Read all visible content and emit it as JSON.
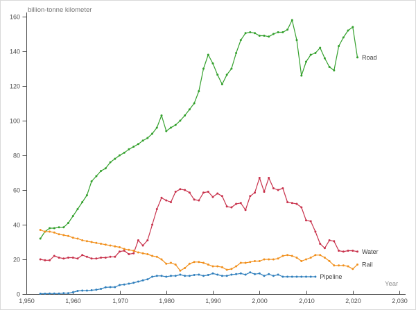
{
  "chart_data": {
    "type": "line",
    "title": "",
    "ylabel": "billion-tonne kilometer",
    "xlabel": "Year",
    "xlim": [
      1950,
      2030
    ],
    "ylim": [
      0,
      160
    ],
    "x_ticks": [
      1950,
      1960,
      1970,
      1980,
      1990,
      2000,
      2010,
      2020,
      2030
    ],
    "x_tick_labels": [
      "1,950",
      "1,960",
      "1,970",
      "1,980",
      "1,990",
      "2,000",
      "2,010",
      "2,020",
      "2,030"
    ],
    "y_ticks": [
      0,
      20,
      40,
      60,
      80,
      100,
      120,
      140,
      160
    ],
    "grid": false,
    "legend_position": "line-end-labels",
    "axis_color": "#4a4a4a",
    "tick_label_color": "#4d4d4d",
    "series_label_color": "#3d3d3d",
    "series": [
      {
        "name": "Road",
        "color": "#33a02c",
        "start_year": 1953,
        "values": [
          32,
          36,
          38,
          38,
          38.5,
          38.5,
          41,
          45,
          49,
          53,
          57,
          65,
          68,
          71,
          72.5,
          76,
          78,
          80,
          81.5,
          83.5,
          85,
          86.5,
          88.5,
          90,
          92.5,
          96,
          103,
          94,
          96,
          97.5,
          100,
          103,
          106.5,
          110,
          117,
          130,
          138,
          133,
          126.5,
          121,
          126.5,
          130,
          139,
          146.5,
          150.5,
          151,
          150.5,
          149,
          149,
          148.5,
          150,
          151,
          151,
          152.5,
          158,
          146.5,
          126,
          134,
          138,
          139,
          142,
          136,
          131,
          129,
          143,
          148,
          152,
          154,
          136.5
        ]
      },
      {
        "name": "Water",
        "color": "#c8314b",
        "start_year": 1953,
        "values": [
          20,
          19.5,
          19.5,
          22,
          21,
          20.5,
          21,
          21,
          20.5,
          22.5,
          21.5,
          20.5,
          20.5,
          21,
          21,
          21.5,
          21.5,
          24.5,
          25,
          23,
          23.5,
          31,
          28,
          31,
          40,
          49,
          55.5,
          54,
          53,
          59,
          60.5,
          60,
          58.5,
          54.5,
          54,
          58.5,
          59,
          56,
          58,
          56.5,
          50.5,
          50,
          52,
          52.5,
          48.5,
          56.5,
          58.5,
          67,
          59,
          67,
          61,
          60,
          61,
          53,
          52.5,
          52,
          50,
          42.5,
          42,
          36,
          29,
          26.5,
          31,
          30.5,
          25,
          24.5,
          25,
          25,
          24.5
        ]
      },
      {
        "name": "Rail",
        "color": "#f1901d",
        "start_year": 1953,
        "values": [
          37,
          36,
          36,
          35.5,
          34.5,
          34,
          33.5,
          32.5,
          32,
          31,
          30.5,
          30,
          29.5,
          29,
          28.5,
          28,
          27.5,
          27,
          26,
          25.5,
          25,
          24,
          23.5,
          23,
          22,
          21.5,
          20,
          17.5,
          18,
          17,
          13.5,
          15,
          17.5,
          18.5,
          18.5,
          18,
          17,
          16,
          16,
          15.5,
          14,
          14.5,
          16,
          18,
          18,
          18.5,
          19,
          19,
          20,
          20,
          20,
          20.5,
          22,
          22.5,
          22,
          21,
          19,
          20,
          21,
          22.5,
          22.5,
          21,
          19,
          16.5,
          16.5,
          16.5,
          16,
          14.5,
          17
        ]
      },
      {
        "name": "Pipeline",
        "color": "#2e7ebc",
        "start_year": 1953,
        "values": [
          0.2,
          0.2,
          0.3,
          0.3,
          0.3,
          0.5,
          0.5,
          1,
          1.8,
          2,
          2,
          2.2,
          2.5,
          3,
          3.9,
          4,
          4,
          5.2,
          5.5,
          6,
          6.5,
          7.2,
          7.9,
          8.5,
          10,
          10.5,
          10.5,
          10,
          10.5,
          10.5,
          11.2,
          10.5,
          10.5,
          11,
          11.2,
          10.5,
          11,
          11.9,
          11.2,
          10.5,
          10.5,
          11.2,
          11.5,
          11.9,
          11.2,
          12.5,
          11.5,
          11.9,
          10.5,
          11.5,
          10.5,
          11.2,
          10,
          10,
          10,
          10,
          10,
          10,
          10,
          10
        ]
      }
    ]
  }
}
